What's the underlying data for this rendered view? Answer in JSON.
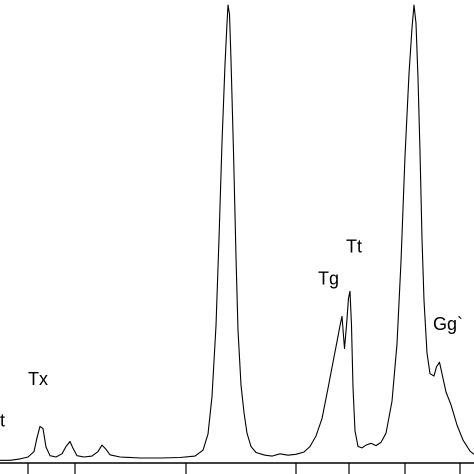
{
  "chart_data": {
    "type": "line",
    "title": "",
    "xlabel": "",
    "ylabel": "",
    "xlim": [
      0,
      474
    ],
    "ylim": [
      0,
      100
    ],
    "grid": false,
    "legend": "none",
    "line_color": "#000000",
    "series": [
      {
        "points": [
          [
            0,
            0.6
          ],
          [
            10,
            0.6
          ],
          [
            20,
            0.9
          ],
          [
            28,
            1.3
          ],
          [
            34,
            2.5
          ],
          [
            37,
            5.5
          ],
          [
            40,
            8.0
          ],
          [
            43,
            7.5
          ],
          [
            46,
            3.5
          ],
          [
            50,
            1.6
          ],
          [
            56,
            1.3
          ],
          [
            62,
            2.0
          ],
          [
            66,
            3.6
          ],
          [
            70,
            4.7
          ],
          [
            73,
            3.2
          ],
          [
            77,
            1.6
          ],
          [
            84,
            1.3
          ],
          [
            92,
            1.5
          ],
          [
            98,
            2.5
          ],
          [
            102,
            3.9
          ],
          [
            106,
            3.0
          ],
          [
            110,
            1.8
          ],
          [
            120,
            1.3
          ],
          [
            140,
            1.1
          ],
          [
            160,
            1.1
          ],
          [
            180,
            1.2
          ],
          [
            195,
            1.5
          ],
          [
            203,
            2.8
          ],
          [
            208,
            6.3
          ],
          [
            212,
            14.5
          ],
          [
            216,
            30
          ],
          [
            219,
            49
          ],
          [
            222,
            70
          ],
          [
            225,
            87
          ],
          [
            227,
            96
          ],
          [
            228,
            100
          ],
          [
            229.5,
            98
          ],
          [
            231,
            88
          ],
          [
            233.5,
            68
          ],
          [
            236,
            45
          ],
          [
            238,
            29
          ],
          [
            241,
            17
          ],
          [
            244,
            11
          ],
          [
            247,
            6.5
          ],
          [
            251,
            3.6
          ],
          [
            256,
            2.3
          ],
          [
            265,
            1.7
          ],
          [
            272,
            1.5
          ],
          [
            280,
            2.0
          ],
          [
            288,
            1.7
          ],
          [
            296,
            1.9
          ],
          [
            304,
            2.4
          ],
          [
            310,
            3.6
          ],
          [
            316,
            5.9
          ],
          [
            322,
            9.7
          ],
          [
            328,
            16.3
          ],
          [
            333,
            22
          ],
          [
            337,
            26.5
          ],
          [
            340,
            30
          ],
          [
            342,
            32
          ],
          [
            344.5,
            25
          ],
          [
            346.5,
            30
          ],
          [
            348.5,
            36
          ],
          [
            350,
            37.5
          ],
          [
            351.5,
            30
          ],
          [
            353,
            16.5
          ],
          [
            355,
            7.0
          ],
          [
            358,
            3.6
          ],
          [
            362,
            3.3
          ],
          [
            366,
            3.9
          ],
          [
            371,
            4.3
          ],
          [
            376,
            3.8
          ],
          [
            381,
            4.5
          ],
          [
            386,
            6.5
          ],
          [
            392,
            13.5
          ],
          [
            397,
            26
          ],
          [
            401,
            44
          ],
          [
            405,
            67
          ],
          [
            409,
            85
          ],
          [
            412,
            95
          ],
          [
            414,
            100
          ],
          [
            416,
            96
          ],
          [
            418,
            84
          ],
          [
            420,
            68
          ],
          [
            422,
            49
          ],
          [
            424,
            35.5
          ],
          [
            427,
            24
          ],
          [
            430,
            19.5
          ],
          [
            434,
            19
          ],
          [
            436.5,
            21
          ],
          [
            439.5,
            22
          ],
          [
            442,
            19.5
          ],
          [
            446,
            15.5
          ],
          [
            451,
            12.7
          ],
          [
            457,
            8.3
          ],
          [
            463,
            5.0
          ],
          [
            470,
            2.6
          ],
          [
            474,
            1.9
          ]
        ]
      }
    ],
    "x_ticks": [
      28,
      75,
      186,
      296,
      349,
      405,
      460
    ],
    "annotations": [
      {
        "text": "t",
        "x": 0,
        "y": 8
      },
      {
        "text": "Tx",
        "x": 28,
        "y": 17
      },
      {
        "text": "Tg",
        "x": 318,
        "y": 39
      },
      {
        "text": "Tt",
        "x": 346,
        "y": 46
      },
      {
        "text": "Gg`",
        "x": 433,
        "y": 29
      }
    ]
  }
}
